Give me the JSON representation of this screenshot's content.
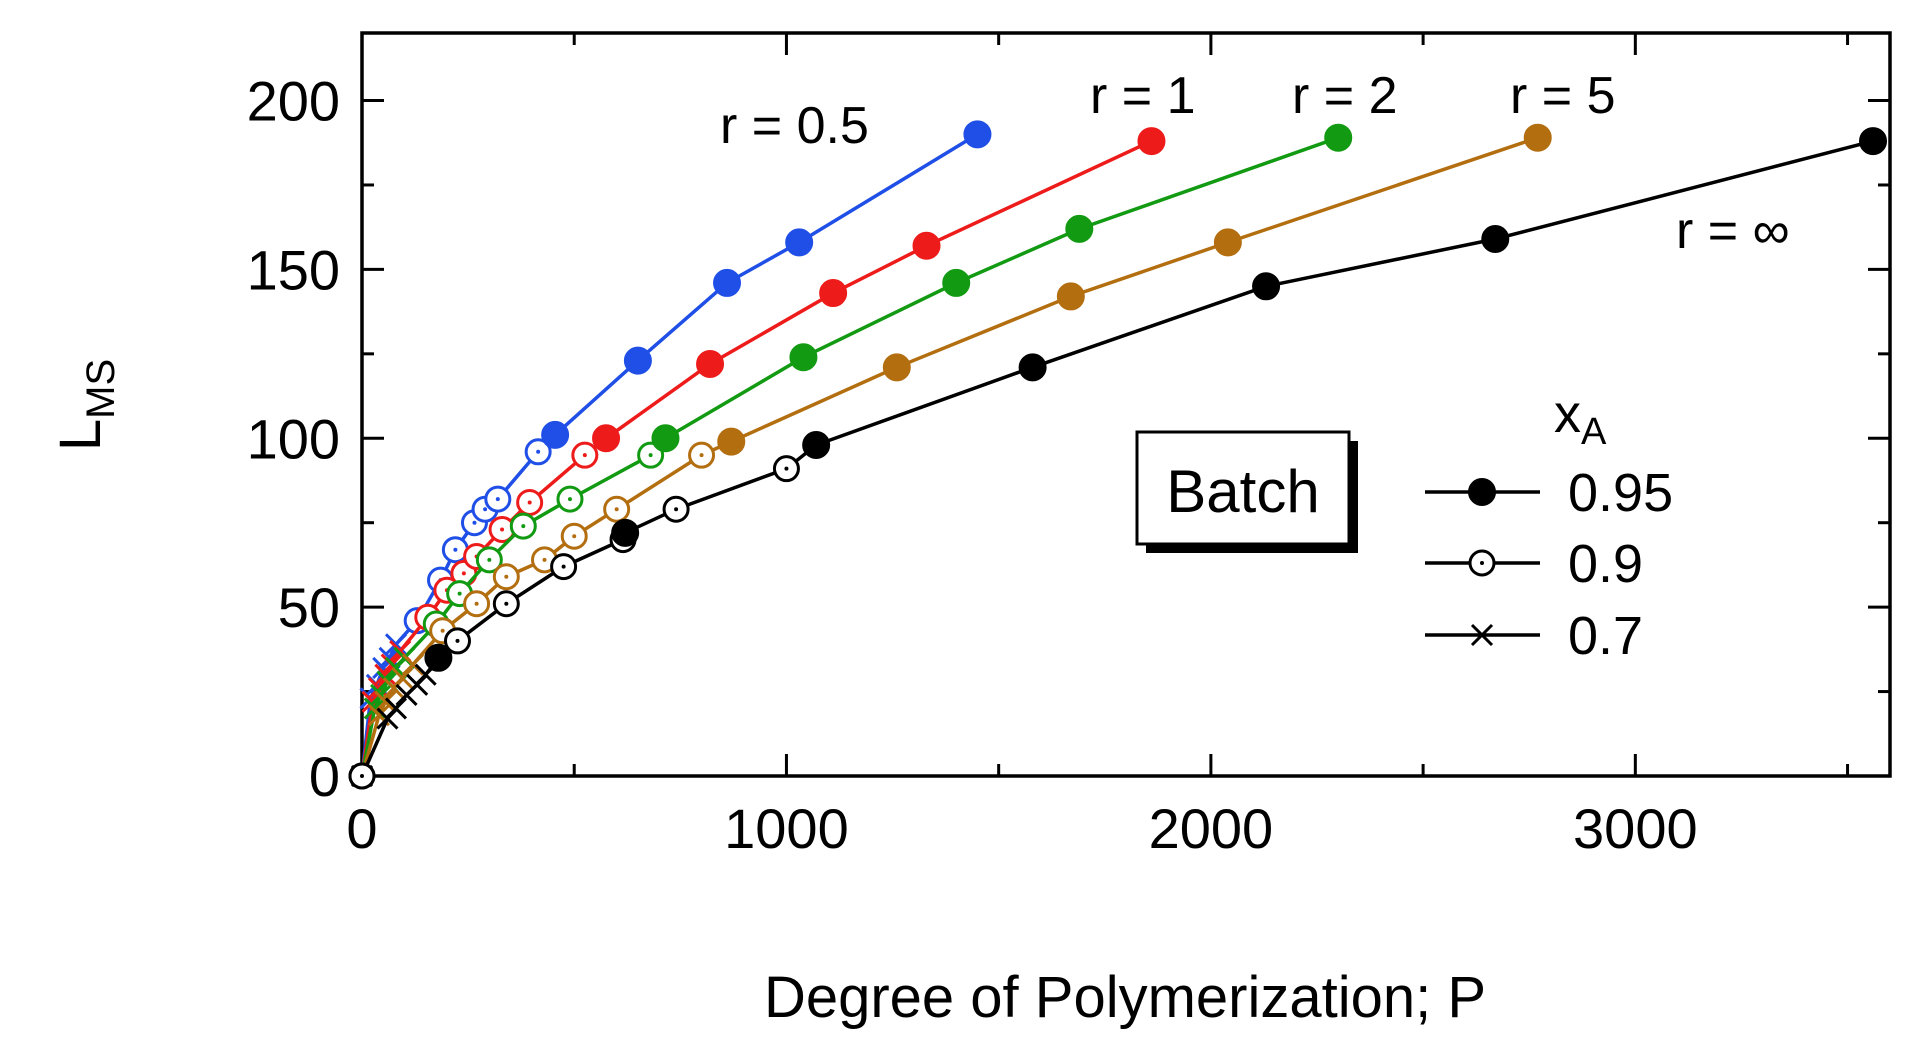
{
  "chart_data": {
    "type": "line",
    "xlabel": "Degree of Polymerization; P",
    "ylabel": "L",
    "ylabel_subscript": "MS",
    "xlim": [
      0,
      3600
    ],
    "ylim": [
      0,
      220
    ],
    "x_ticks": [
      0,
      1000,
      2000,
      3000
    ],
    "y_ticks": [
      0,
      50,
      100,
      150,
      200
    ],
    "grid": false,
    "box_label": "Batch",
    "legend": {
      "title": "x",
      "title_subscript": "A",
      "placement": "right-middle",
      "entries": [
        {
          "label": "0.95",
          "marker": "filled-circle"
        },
        {
          "label": "0.9",
          "marker": "open-circle-dot"
        },
        {
          "label": "0.7",
          "marker": "cross"
        }
      ]
    },
    "series": [
      {
        "name": "r = 0.5",
        "color": "#1f4fe6",
        "points_095": [
          [
            455,
            101
          ],
          [
            650,
            123
          ],
          [
            860,
            146
          ],
          [
            1030,
            158
          ],
          [
            1450,
            190
          ]
        ],
        "points_090": [
          [
            130,
            46
          ],
          [
            185,
            58
          ],
          [
            220,
            67
          ],
          [
            265,
            75
          ],
          [
            290,
            79
          ],
          [
            320,
            82
          ],
          [
            415,
            96
          ]
        ],
        "points_070": [
          [
            20,
            23
          ],
          [
            35,
            27
          ],
          [
            50,
            32
          ],
          [
            65,
            35
          ],
          [
            80,
            39
          ]
        ]
      },
      {
        "name": "r = 1",
        "color": "#ee1b1b",
        "points_095": [
          [
            575,
            100
          ],
          [
            820,
            122
          ],
          [
            1110,
            143
          ],
          [
            1330,
            157
          ],
          [
            1860,
            188
          ]
        ],
        "points_090": [
          [
            155,
            47
          ],
          [
            200,
            55
          ],
          [
            240,
            60
          ],
          [
            270,
            65
          ],
          [
            330,
            73
          ],
          [
            395,
            81
          ],
          [
            525,
            95
          ]
        ],
        "points_070": [
          [
            25,
            22
          ],
          [
            40,
            26
          ],
          [
            55,
            30
          ],
          [
            70,
            33
          ],
          [
            90,
            37
          ]
        ]
      },
      {
        "name": "r = 2",
        "color": "#129a12",
        "points_095": [
          [
            715,
            100
          ],
          [
            1040,
            124
          ],
          [
            1400,
            146
          ],
          [
            1690,
            162
          ],
          [
            2300,
            189
          ]
        ],
        "points_090": [
          [
            175,
            45
          ],
          [
            230,
            54
          ],
          [
            300,
            64
          ],
          [
            380,
            74
          ],
          [
            490,
            82
          ],
          [
            680,
            95
          ]
        ],
        "points_070": [
          [
            30,
            20
          ],
          [
            45,
            24
          ],
          [
            60,
            28
          ],
          [
            80,
            32
          ],
          [
            100,
            35
          ]
        ]
      },
      {
        "name": "r = 5",
        "color": "#b36e10",
        "points_095": [
          [
            870,
            99
          ],
          [
            1260,
            121
          ],
          [
            1670,
            142
          ],
          [
            2040,
            158
          ],
          [
            2770,
            189
          ]
        ],
        "points_090": [
          [
            190,
            43
          ],
          [
            270,
            51
          ],
          [
            340,
            59
          ],
          [
            430,
            64
          ],
          [
            500,
            71
          ],
          [
            600,
            79
          ],
          [
            800,
            95
          ]
        ],
        "points_070": [
          [
            40,
            18
          ],
          [
            55,
            22
          ],
          [
            75,
            26
          ],
          [
            95,
            29
          ],
          [
            120,
            33
          ]
        ]
      },
      {
        "name": "r = ∞",
        "color": "#000000",
        "points_095": [
          [
            180,
            35
          ],
          [
            620,
            72
          ],
          [
            1070,
            98
          ],
          [
            1580,
            121
          ],
          [
            2130,
            145
          ],
          [
            2670,
            159
          ],
          [
            3560,
            188
          ]
        ],
        "points_090": [
          [
            0,
            0
          ],
          [
            225,
            40
          ],
          [
            340,
            51
          ],
          [
            475,
            62
          ],
          [
            615,
            70
          ],
          [
            740,
            79
          ],
          [
            1000,
            91
          ]
        ],
        "points_070": [
          [
            0,
            0
          ],
          [
            60,
            17
          ],
          [
            80,
            20
          ],
          [
            105,
            24
          ],
          [
            130,
            27
          ],
          [
            150,
            30
          ]
        ]
      }
    ]
  }
}
